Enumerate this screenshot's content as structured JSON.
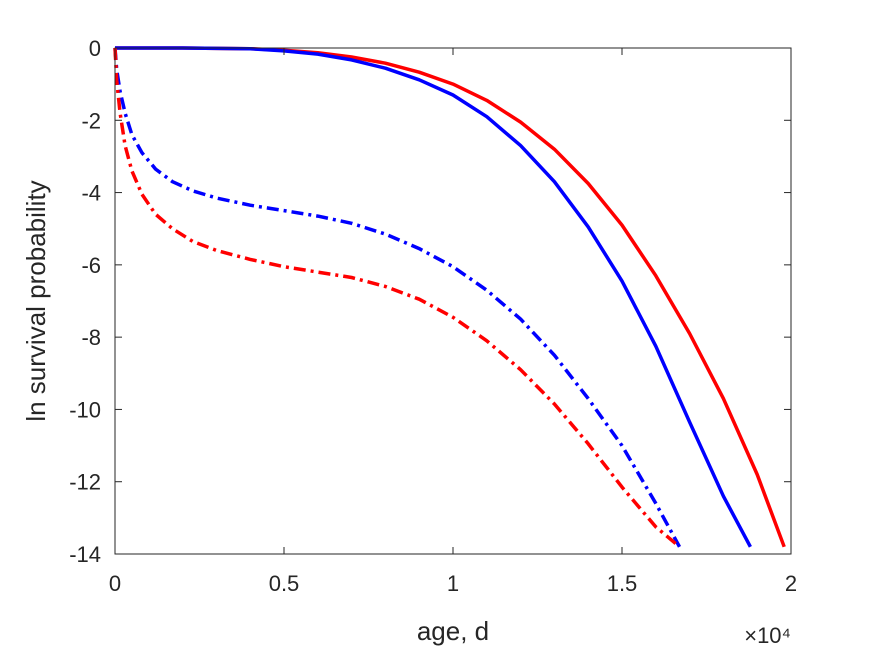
{
  "chart_data": {
    "type": "line",
    "title": "",
    "xlabel": "age, d",
    "ylabel": "ln survival probability",
    "x_exponent_label": "×10⁴",
    "xlim": [
      0,
      20000
    ],
    "ylim": [
      -14,
      0
    ],
    "x_ticks": [
      0,
      5000,
      10000,
      15000,
      20000
    ],
    "x_tick_labels": [
      "0",
      "0.5",
      "1",
      "1.5",
      "2"
    ],
    "y_ticks": [
      0,
      -2,
      -4,
      -6,
      -8,
      -10,
      -12,
      -14
    ],
    "y_tick_labels": [
      "0",
      "-2",
      "-4",
      "-6",
      "-8",
      "-10",
      "-12",
      "-14"
    ],
    "grid": false,
    "legend": "none",
    "series": [
      {
        "color": "#ff0000",
        "style": "solid",
        "x": [
          0,
          2000,
          4000,
          5000,
          6000,
          7000,
          8000,
          9000,
          10000,
          11000,
          12000,
          13000,
          14000,
          15000,
          16000,
          17000,
          18000,
          19000,
          19800
        ],
        "values": [
          0,
          0,
          -0.02,
          -0.06,
          -0.13,
          -0.25,
          -0.42,
          -0.67,
          -1.0,
          -1.45,
          -2.05,
          -2.8,
          -3.75,
          -4.9,
          -6.3,
          -7.9,
          -9.7,
          -11.8,
          -13.8
        ]
      },
      {
        "color": "#0000ff",
        "style": "solid",
        "x": [
          0,
          2000,
          4000,
          5000,
          6000,
          7000,
          8000,
          9000,
          10000,
          11000,
          12000,
          13000,
          14000,
          15000,
          16000,
          17000,
          18000,
          18800
        ],
        "values": [
          0,
          0,
          -0.02,
          -0.08,
          -0.17,
          -0.33,
          -0.56,
          -0.88,
          -1.3,
          -1.9,
          -2.7,
          -3.7,
          -4.95,
          -6.45,
          -8.25,
          -10.35,
          -12.4,
          -13.8
        ]
      },
      {
        "color": "#0000ff",
        "style": "dashdot",
        "x": [
          0,
          50,
          150,
          300,
          500,
          800,
          1200,
          1700,
          2300,
          3000,
          4000,
          5000,
          6000,
          7000,
          8000,
          9000,
          10000,
          11000,
          12000,
          13000,
          14000,
          15000,
          16000,
          16700
        ],
        "values": [
          0,
          -0.6,
          -1.2,
          -1.8,
          -2.4,
          -2.9,
          -3.35,
          -3.7,
          -3.95,
          -4.15,
          -4.35,
          -4.5,
          -4.65,
          -4.85,
          -5.15,
          -5.55,
          -6.05,
          -6.7,
          -7.5,
          -8.5,
          -9.7,
          -11.0,
          -12.6,
          -13.8
        ]
      },
      {
        "color": "#ff0000",
        "style": "dashdot",
        "x": [
          0,
          50,
          150,
          300,
          500,
          800,
          1200,
          1700,
          2300,
          3000,
          4000,
          5000,
          6000,
          7000,
          8000,
          9000,
          10000,
          11000,
          12000,
          13000,
          14000,
          15000,
          16000,
          16700
        ],
        "values": [
          0,
          -0.9,
          -1.8,
          -2.7,
          -3.4,
          -4.05,
          -4.6,
          -5.0,
          -5.35,
          -5.6,
          -5.85,
          -6.05,
          -6.2,
          -6.35,
          -6.6,
          -6.95,
          -7.45,
          -8.1,
          -8.9,
          -9.85,
          -10.95,
          -12.15,
          -13.25,
          -13.8
        ]
      }
    ]
  }
}
